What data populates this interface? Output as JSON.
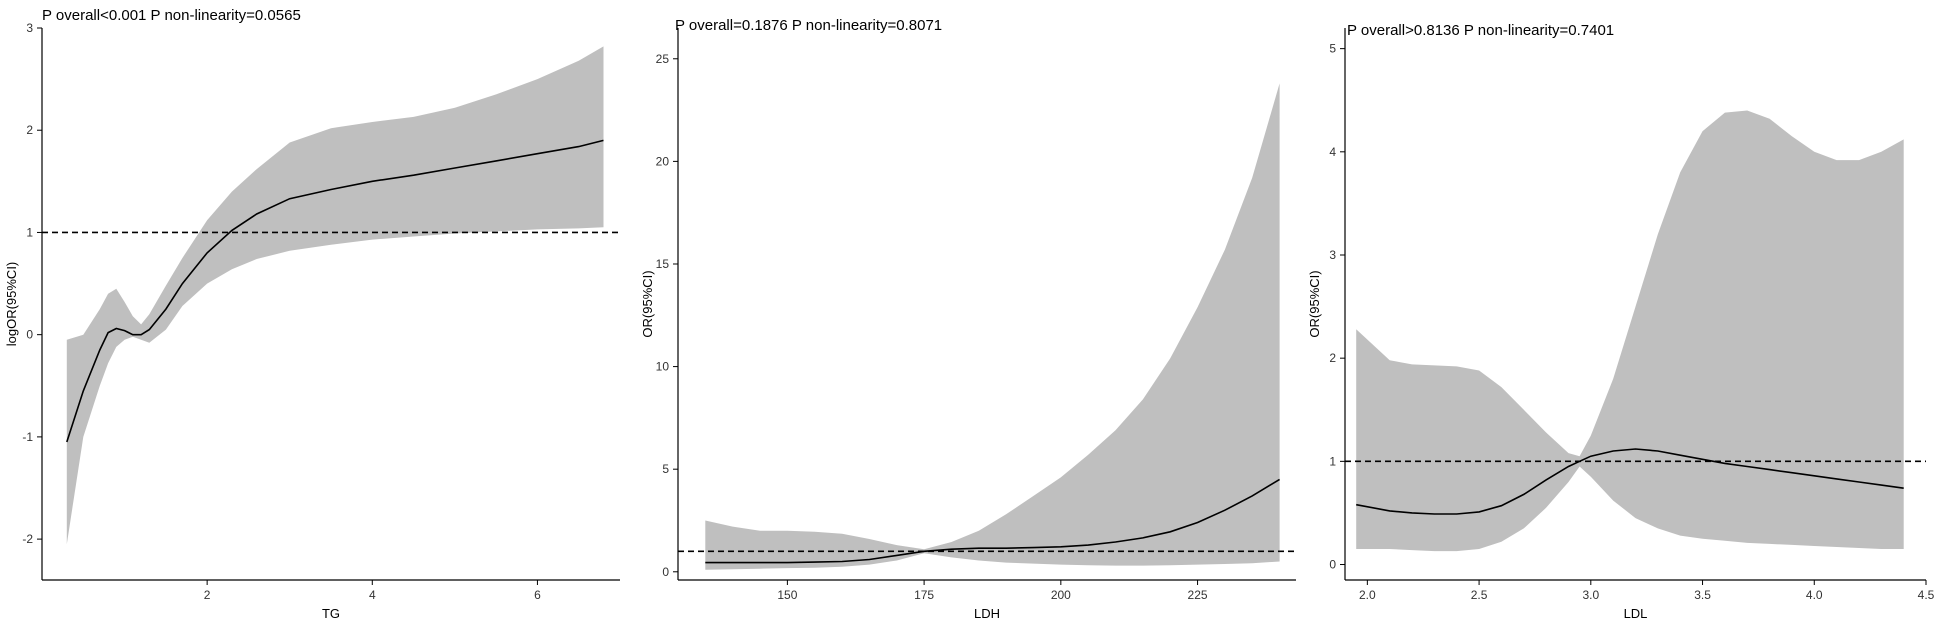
{
  "chart_data": [
    {
      "type": "line",
      "title": "P overall<0.001  P non-linearity=0.0565",
      "xlabel": "TG",
      "ylabel": "logOR(95%CI)",
      "xlim": [
        0.0,
        7.0
      ],
      "ylim": [
        -2.4,
        3.0
      ],
      "xticks": [
        2,
        4,
        6
      ],
      "yticks": [
        -2,
        -1,
        0,
        1,
        2,
        3
      ],
      "reference_line": 1,
      "grid": false,
      "series": [
        {
          "x": [
            0.3,
            0.5,
            0.7,
            0.8,
            0.9,
            1.0,
            1.1,
            1.2,
            1.3,
            1.5,
            1.7,
            2.0,
            2.3,
            2.6,
            3.0,
            3.5,
            4.0,
            4.5,
            5.0,
            5.5,
            6.0,
            6.5,
            6.8
          ],
          "values": [
            -1.05,
            -0.55,
            -0.15,
            0.02,
            0.06,
            0.04,
            0.0,
            0.0,
            0.05,
            0.25,
            0.5,
            0.8,
            1.02,
            1.18,
            1.33,
            1.42,
            1.5,
            1.56,
            1.63,
            1.7,
            1.77,
            1.84,
            1.9
          ],
          "lower": [
            -2.05,
            -1.0,
            -0.5,
            -0.28,
            -0.12,
            -0.05,
            -0.02,
            -0.05,
            -0.08,
            0.05,
            0.28,
            0.5,
            0.64,
            0.74,
            0.82,
            0.88,
            0.93,
            0.96,
            0.99,
            1.01,
            1.03,
            1.04,
            1.05
          ],
          "upper": [
            -0.05,
            0.0,
            0.25,
            0.4,
            0.45,
            0.32,
            0.18,
            0.1,
            0.2,
            0.48,
            0.75,
            1.12,
            1.4,
            1.62,
            1.88,
            2.02,
            2.08,
            2.13,
            2.22,
            2.35,
            2.5,
            2.68,
            2.82
          ]
        }
      ]
    },
    {
      "type": "line",
      "title": "P overall=0.1876  P non-linearity=0.8071",
      "xlabel": "LDH",
      "ylabel": "OR(95%CI)",
      "xlim": [
        130,
        243
      ],
      "ylim": [
        -0.4,
        26.5
      ],
      "xticks": [
        150,
        175,
        200,
        225
      ],
      "yticks": [
        0,
        5,
        10,
        15,
        20,
        25
      ],
      "reference_line": 1,
      "grid": false,
      "series": [
        {
          "x": [
            135,
            140,
            145,
            150,
            155,
            160,
            165,
            170,
            175,
            180,
            185,
            190,
            195,
            200,
            205,
            210,
            215,
            220,
            225,
            230,
            235,
            240
          ],
          "values": [
            0.45,
            0.45,
            0.45,
            0.45,
            0.47,
            0.5,
            0.6,
            0.8,
            1.0,
            1.1,
            1.15,
            1.15,
            1.18,
            1.22,
            1.3,
            1.45,
            1.65,
            1.95,
            2.4,
            3.0,
            3.7,
            4.5
          ],
          "lower": [
            0.1,
            0.12,
            0.15,
            0.18,
            0.2,
            0.25,
            0.35,
            0.55,
            0.9,
            0.7,
            0.55,
            0.45,
            0.4,
            0.35,
            0.32,
            0.3,
            0.3,
            0.32,
            0.35,
            0.38,
            0.42,
            0.5
          ],
          "upper": [
            2.5,
            2.2,
            2.0,
            2.0,
            1.95,
            1.85,
            1.6,
            1.3,
            1.1,
            1.45,
            2.0,
            2.8,
            3.7,
            4.6,
            5.7,
            6.9,
            8.4,
            10.4,
            12.9,
            15.7,
            19.2,
            23.8
          ]
        }
      ]
    },
    {
      "type": "line",
      "title": "P overall>0.8136  P non-linearity=0.7401",
      "xlabel": "LDL",
      "ylabel": "OR(95%CI)",
      "xlim": [
        1.9,
        4.5
      ],
      "ylim": [
        -0.15,
        5.2
      ],
      "xticks": [
        2.0,
        2.5,
        3.0,
        3.5,
        4.0,
        4.5
      ],
      "xtick_labels": [
        "2.0",
        "2.5",
        "3.0",
        "3.5",
        "4.0",
        "4.5"
      ],
      "yticks": [
        0,
        1,
        2,
        3,
        4,
        5
      ],
      "reference_line": 1,
      "grid": false,
      "series": [
        {
          "x": [
            1.95,
            2.1,
            2.2,
            2.3,
            2.4,
            2.5,
            2.6,
            2.7,
            2.8,
            2.9,
            2.95,
            3.0,
            3.1,
            3.2,
            3.3,
            3.4,
            3.5,
            3.6,
            3.7,
            3.8,
            3.9,
            4.0,
            4.1,
            4.2,
            4.3,
            4.4
          ],
          "values": [
            0.58,
            0.52,
            0.5,
            0.49,
            0.49,
            0.51,
            0.57,
            0.68,
            0.82,
            0.95,
            1.0,
            1.05,
            1.1,
            1.12,
            1.1,
            1.06,
            1.02,
            0.98,
            0.95,
            0.92,
            0.89,
            0.86,
            0.83,
            0.8,
            0.77,
            0.74
          ],
          "lower": [
            0.15,
            0.15,
            0.14,
            0.13,
            0.13,
            0.15,
            0.22,
            0.35,
            0.55,
            0.8,
            0.95,
            0.85,
            0.62,
            0.45,
            0.35,
            0.28,
            0.25,
            0.23,
            0.21,
            0.2,
            0.19,
            0.18,
            0.17,
            0.16,
            0.15,
            0.15
          ],
          "upper": [
            2.28,
            1.98,
            1.94,
            1.93,
            1.92,
            1.88,
            1.72,
            1.5,
            1.28,
            1.08,
            1.05,
            1.25,
            1.8,
            2.5,
            3.2,
            3.8,
            4.2,
            4.38,
            4.4,
            4.32,
            4.15,
            4.0,
            3.92,
            3.92,
            4.0,
            4.12
          ]
        }
      ]
    }
  ]
}
